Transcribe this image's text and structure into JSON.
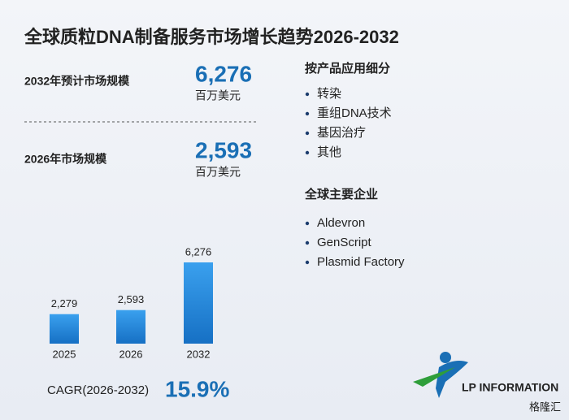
{
  "title": "全球质粒DNA制备服务市场增长趋势2026-2032",
  "stats": [
    {
      "label": "2032年预计市场规模",
      "value": "6,276",
      "unit": "百万美元"
    },
    {
      "label": "2026年市场规模",
      "value": "2,593",
      "unit": "百万美元"
    }
  ],
  "segments": {
    "title": "按产品应用细分",
    "items": [
      "转染",
      "重组DNA技术",
      "基因治疗",
      "其他"
    ]
  },
  "companies": {
    "title": "全球主要企业",
    "items": [
      "Aldevron",
      "GenScript",
      "Plasmid Factory"
    ]
  },
  "chart_data": {
    "type": "bar",
    "categories": [
      "2025",
      "2026",
      "2032"
    ],
    "values": [
      2279,
      2593,
      6276
    ],
    "value_labels": [
      "2,279",
      "2,593",
      "6,276"
    ],
    "color": "#1e88d8"
  },
  "cagr": {
    "label": "CAGR(2026-2032)",
    "value": "15.9%"
  },
  "logo": "LP INFORMATION",
  "watermark": "格隆汇"
}
